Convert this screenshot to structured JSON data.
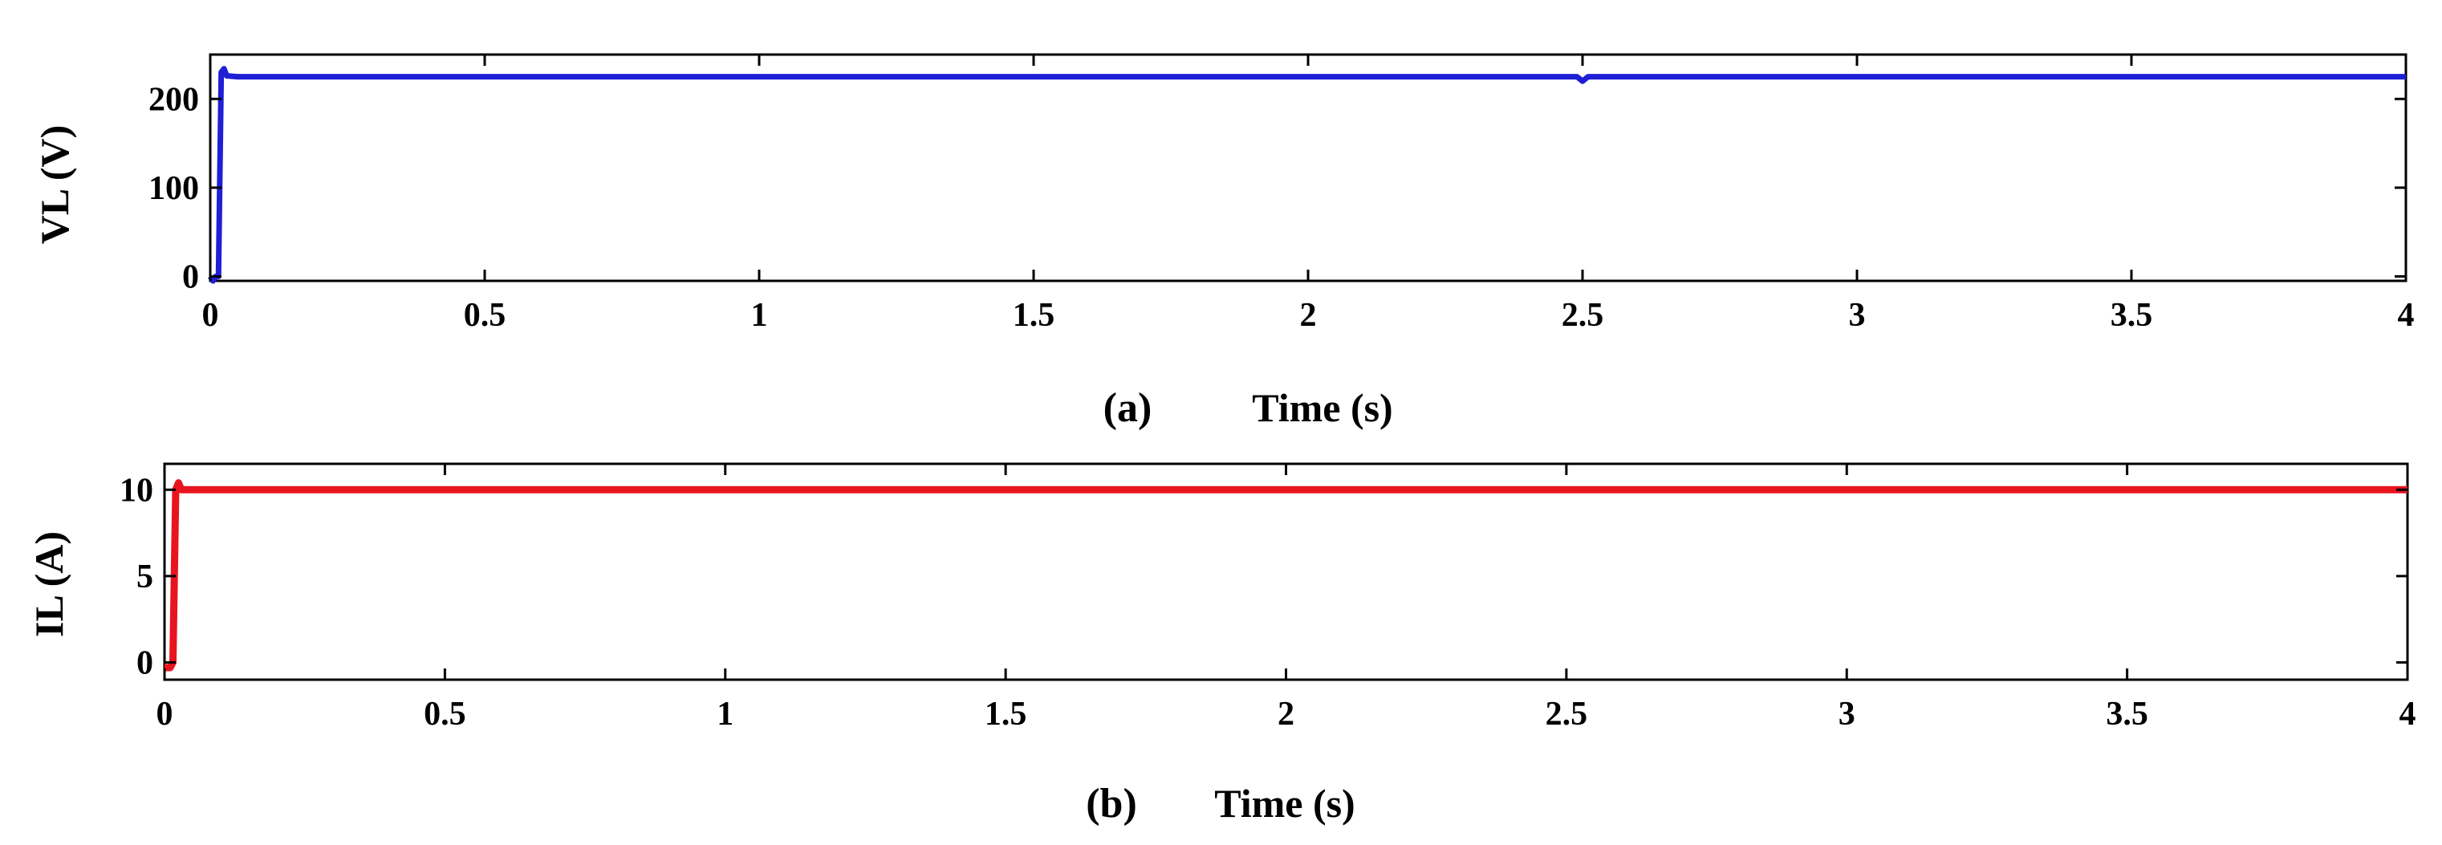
{
  "chart_data": [
    {
      "type": "line",
      "panel_label": "(a)",
      "xlabel": "Time (s)",
      "ylabel": "VL (V)",
      "xlim": [
        0,
        4
      ],
      "ylim": [
        -5,
        250
      ],
      "xticks": [
        {
          "v": 0,
          "label": "0"
        },
        {
          "v": 0.5,
          "label": "0.5"
        },
        {
          "v": 1,
          "label": "1"
        },
        {
          "v": 1.5,
          "label": "1.5"
        },
        {
          "v": 2,
          "label": "2"
        },
        {
          "v": 2.5,
          "label": "2.5"
        },
        {
          "v": 3,
          "label": "3"
        },
        {
          "v": 3.5,
          "label": "3.5"
        },
        {
          "v": 4,
          "label": "4"
        }
      ],
      "yticks": [
        {
          "v": 0,
          "label": "0"
        },
        {
          "v": 100,
          "label": "100"
        },
        {
          "v": 200,
          "label": "200"
        }
      ],
      "grid": false,
      "color": "#1f1fd6",
      "series": [
        {
          "x": [
            0,
            0.005,
            0.01,
            0.015,
            0.02,
            0.025,
            0.03,
            0.05,
            0.5,
            1.0,
            1.5,
            2.0,
            2.49,
            2.5,
            2.51,
            2.52,
            3.0,
            3.5,
            4.0
          ],
          "y": [
            0,
            -5,
            0,
            0,
            230,
            234,
            226,
            225,
            225,
            225,
            225,
            225,
            225,
            220,
            225,
            225,
            225,
            225,
            225
          ]
        }
      ]
    },
    {
      "type": "line",
      "panel_label": "(b)",
      "xlabel": "Time (s)",
      "ylabel": "IL (A)",
      "xlim": [
        0,
        4
      ],
      "ylim": [
        -1,
        11.5
      ],
      "xticks": [
        {
          "v": 0,
          "label": "0"
        },
        {
          "v": 0.5,
          "label": "0.5"
        },
        {
          "v": 1,
          "label": "1"
        },
        {
          "v": 1.5,
          "label": "1.5"
        },
        {
          "v": 2,
          "label": "2"
        },
        {
          "v": 2.5,
          "label": "2.5"
        },
        {
          "v": 3,
          "label": "3"
        },
        {
          "v": 3.5,
          "label": "3.5"
        },
        {
          "v": 4,
          "label": "4"
        }
      ],
      "yticks": [
        {
          "v": 0,
          "label": "0"
        },
        {
          "v": 5,
          "label": "5"
        },
        {
          "v": 10,
          "label": "10"
        }
      ],
      "grid": false,
      "color": "#e8141e",
      "series": [
        {
          "x": [
            0,
            0.01,
            0.015,
            0.02,
            0.025,
            0.03,
            0.05,
            0.5,
            1.0,
            1.5,
            2.0,
            2.5,
            3.0,
            3.5,
            4.0
          ],
          "y": [
            -0.3,
            -0.3,
            0,
            10,
            10.4,
            10,
            10,
            10,
            10,
            10,
            10,
            10,
            10,
            10,
            10
          ]
        }
      ]
    }
  ]
}
